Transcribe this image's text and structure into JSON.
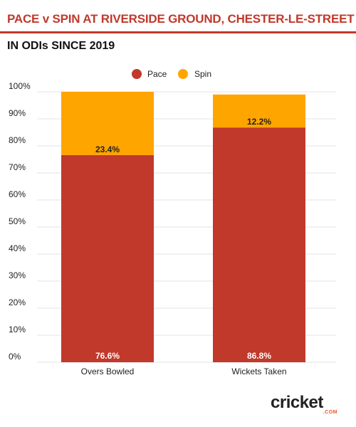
{
  "header": {
    "title": "PACE v SPIN AT RIVERSIDE GROUND, CHESTER-LE-STREET",
    "subtitle": "IN ODIs SINCE 2019"
  },
  "logo": {
    "wordmark": "cricket",
    "suffix": ".COM"
  },
  "colors": {
    "pace": "#c0392b",
    "spin": "#ffa500",
    "accent": "#c0392b"
  },
  "chart_data": {
    "type": "bar",
    "stacked": true,
    "categories": [
      "Overs Bowled",
      "Wickets Taken"
    ],
    "series": [
      {
        "name": "Pace",
        "values": [
          76.6,
          86.8
        ],
        "labels": [
          "76.6%",
          "86.8%"
        ]
      },
      {
        "name": "Spin",
        "values": [
          23.4,
          12.2
        ],
        "labels": [
          "23.4%",
          "12.2%"
        ]
      }
    ],
    "ylim": [
      0,
      100
    ],
    "yticks": [
      0,
      10,
      20,
      30,
      40,
      50,
      60,
      70,
      80,
      90,
      100
    ],
    "ytick_labels": [
      "0%",
      "10%",
      "20%",
      "30%",
      "40%",
      "50%",
      "60%",
      "70%",
      "80%",
      "90%",
      "100%"
    ],
    "grid": true,
    "legend": "top-center"
  }
}
